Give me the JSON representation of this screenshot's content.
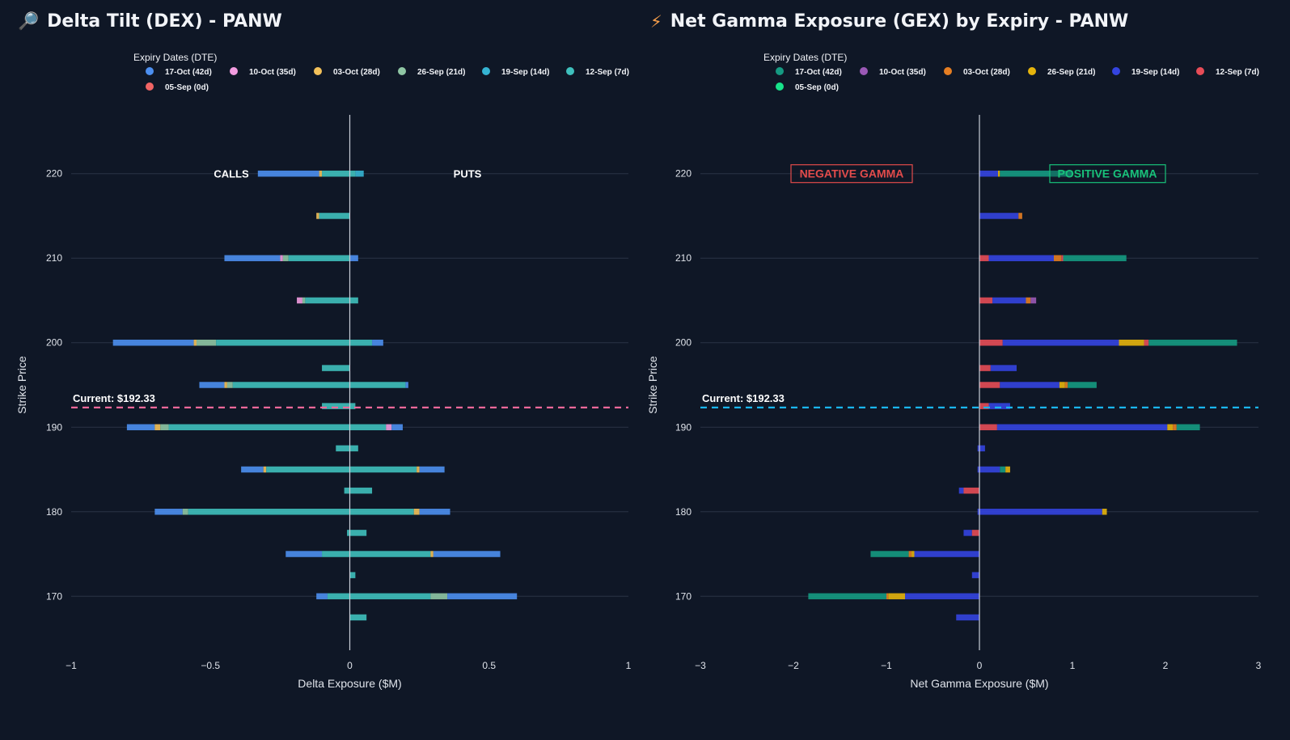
{
  "left": {
    "icon": "magnifier-icon",
    "title": "Delta Tilt (DEX) - PANW",
    "legend_title": "Expiry Dates (DTE)",
    "legend": [
      {
        "label": "17-Oct (42d)",
        "color": "#4c8ff0"
      },
      {
        "label": "10-Oct (35d)",
        "color": "#f29ce0"
      },
      {
        "label": "03-Oct (28d)",
        "color": "#f3c15a"
      },
      {
        "label": "26-Sep (21d)",
        "color": "#8fc6a4"
      },
      {
        "label": "19-Sep (14d)",
        "color": "#35b4d3"
      },
      {
        "label": "12-Sep (7d)",
        "color": "#3fc0bd"
      },
      {
        "label": "05-Sep (0d)",
        "color": "#f06464"
      }
    ],
    "current_label": "Current: $192.33",
    "current_color": "#f0689a",
    "calls_label": "CALLS",
    "puts_label": "PUTS"
  },
  "right": {
    "icon": "lightning-icon",
    "title": "Net Gamma Exposure (GEX) by Expiry - PANW",
    "legend_title": "Expiry Dates (DTE)",
    "legend": [
      {
        "label": "17-Oct (42d)",
        "color": "#159a82"
      },
      {
        "label": "10-Oct (35d)",
        "color": "#9b59b6"
      },
      {
        "label": "03-Oct (28d)",
        "color": "#e67e22"
      },
      {
        "label": "26-Sep (21d)",
        "color": "#e5b40c"
      },
      {
        "label": "19-Sep (14d)",
        "color": "#3444e0"
      },
      {
        "label": "12-Sep (7d)",
        "color": "#e74c57"
      },
      {
        "label": "05-Sep (0d)",
        "color": "#17e38a"
      }
    ],
    "current_label": "Current: $192.33",
    "current_color": "#1ab6f0",
    "neg_label": "NEGATIVE GAMMA",
    "pos_label": "POSITIVE GAMMA"
  },
  "chart_data": [
    {
      "type": "bar",
      "orientation": "horizontal",
      "title": "Delta Tilt (DEX) - PANW",
      "xlabel": "Delta Exposure ($M)",
      "ylabel": "Strike Price",
      "xlim": [
        -1,
        1
      ],
      "ylim": [
        164,
        226
      ],
      "xticks": [
        -1,
        -0.5,
        0,
        0.5,
        1
      ],
      "xtick_labels": [
        "−1",
        "−0.5",
        "0",
        "0.5",
        "1"
      ],
      "yticks": [
        170,
        180,
        190,
        200,
        210,
        220
      ],
      "current_price": 192.33,
      "bars": [
        {
          "strike": 220,
          "segments": [
            {
              "x0": -0.33,
              "x1": -0.11,
              "c": 0
            },
            {
              "x0": -0.11,
              "x1": -0.1,
              "c": 2
            },
            {
              "x0": -0.1,
              "x1": 0.02,
              "c": 5
            },
            {
              "x0": 0.02,
              "x1": 0.05,
              "c": 4
            }
          ]
        },
        {
          "strike": 215,
          "segments": [
            {
              "x0": -0.12,
              "x1": -0.11,
              "c": 2
            },
            {
              "x0": -0.11,
              "x1": 0,
              "c": 5
            }
          ]
        },
        {
          "strike": 210,
          "segments": [
            {
              "x0": -0.45,
              "x1": -0.25,
              "c": 0
            },
            {
              "x0": -0.25,
              "x1": -0.24,
              "c": 1
            },
            {
              "x0": -0.24,
              "x1": -0.22,
              "c": 3
            },
            {
              "x0": -0.22,
              "x1": 0.0,
              "c": 5
            },
            {
              "x0": 0.0,
              "x1": 0.03,
              "c": 0
            }
          ]
        },
        {
          "strike": 205,
          "segments": [
            {
              "x0": -0.19,
              "x1": -0.17,
              "c": 1
            },
            {
              "x0": -0.17,
              "x1": -0.16,
              "c": 3
            },
            {
              "x0": -0.16,
              "x1": 0.03,
              "c": 5
            }
          ]
        },
        {
          "strike": 200,
          "segments": [
            {
              "x0": -0.85,
              "x1": -0.56,
              "c": 0
            },
            {
              "x0": -0.56,
              "x1": -0.55,
              "c": 2
            },
            {
              "x0": -0.55,
              "x1": -0.48,
              "c": 3
            },
            {
              "x0": -0.48,
              "x1": 0.08,
              "c": 5
            },
            {
              "x0": 0.08,
              "x1": 0.12,
              "c": 0
            }
          ]
        },
        {
          "strike": 197,
          "segments": [
            {
              "x0": -0.1,
              "x1": 0,
              "c": 5
            }
          ]
        },
        {
          "strike": 195,
          "segments": [
            {
              "x0": -0.54,
              "x1": -0.45,
              "c": 0
            },
            {
              "x0": -0.45,
              "x1": -0.44,
              "c": 2
            },
            {
              "x0": -0.44,
              "x1": -0.42,
              "c": 3
            },
            {
              "x0": -0.42,
              "x1": 0.2,
              "c": 5
            },
            {
              "x0": 0.2,
              "x1": 0.21,
              "c": 0
            }
          ]
        },
        {
          "strike": 192.5,
          "segments": [
            {
              "x0": -0.1,
              "x1": 0.02,
              "c": 5
            }
          ]
        },
        {
          "strike": 190,
          "segments": [
            {
              "x0": -0.8,
              "x1": -0.7,
              "c": 0
            },
            {
              "x0": -0.7,
              "x1": -0.68,
              "c": 2
            },
            {
              "x0": -0.68,
              "x1": -0.65,
              "c": 3
            },
            {
              "x0": -0.65,
              "x1": 0.13,
              "c": 5
            },
            {
              "x0": 0.13,
              "x1": 0.15,
              "c": 1
            },
            {
              "x0": 0.15,
              "x1": 0.19,
              "c": 0
            }
          ]
        },
        {
          "strike": 187.5,
          "segments": [
            {
              "x0": -0.05,
              "x1": 0.03,
              "c": 5
            }
          ]
        },
        {
          "strike": 185,
          "segments": [
            {
              "x0": -0.39,
              "x1": -0.31,
              "c": 0
            },
            {
              "x0": -0.31,
              "x1": -0.3,
              "c": 2
            },
            {
              "x0": -0.3,
              "x1": 0.24,
              "c": 5
            },
            {
              "x0": 0.24,
              "x1": 0.25,
              "c": 2
            },
            {
              "x0": 0.25,
              "x1": 0.34,
              "c": 0
            }
          ]
        },
        {
          "strike": 182.5,
          "segments": [
            {
              "x0": -0.02,
              "x1": 0.08,
              "c": 5
            }
          ]
        },
        {
          "strike": 180,
          "segments": [
            {
              "x0": -0.7,
              "x1": -0.6,
              "c": 0
            },
            {
              "x0": -0.6,
              "x1": -0.58,
              "c": 3
            },
            {
              "x0": -0.58,
              "x1": 0.23,
              "c": 5
            },
            {
              "x0": 0.23,
              "x1": 0.25,
              "c": 2
            },
            {
              "x0": 0.25,
              "x1": 0.36,
              "c": 0
            }
          ]
        },
        {
          "strike": 177.5,
          "segments": [
            {
              "x0": -0.01,
              "x1": 0.06,
              "c": 5
            }
          ]
        },
        {
          "strike": 175,
          "segments": [
            {
              "x0": -0.23,
              "x1": -0.1,
              "c": 0
            },
            {
              "x0": -0.1,
              "x1": 0.29,
              "c": 5
            },
            {
              "x0": 0.29,
              "x1": 0.3,
              "c": 2
            },
            {
              "x0": 0.3,
              "x1": 0.54,
              "c": 0
            }
          ]
        },
        {
          "strike": 172.5,
          "segments": [
            {
              "x0": 0.0,
              "x1": 0.02,
              "c": 5
            }
          ]
        },
        {
          "strike": 170,
          "segments": [
            {
              "x0": -0.12,
              "x1": -0.08,
              "c": 0
            },
            {
              "x0": -0.08,
              "x1": 0.29,
              "c": 5
            },
            {
              "x0": 0.29,
              "x1": 0.35,
              "c": 3
            },
            {
              "x0": 0.35,
              "x1": 0.6,
              "c": 0
            }
          ]
        },
        {
          "strike": 167.5,
          "segments": [
            {
              "x0": 0.0,
              "x1": 0.06,
              "c": 5
            }
          ]
        }
      ]
    },
    {
      "type": "bar",
      "orientation": "horizontal",
      "title": "Net Gamma Exposure (GEX) by Expiry - PANW",
      "xlabel": "Net Gamma Exposure ($M)",
      "ylabel": "Strike Price",
      "xlim": [
        -3,
        3
      ],
      "ylim": [
        164,
        226
      ],
      "xticks": [
        -3,
        -2,
        -1,
        0,
        1,
        2,
        3
      ],
      "xtick_labels": [
        "−3",
        "−2",
        "−1",
        "0",
        "1",
        "2",
        "3"
      ],
      "yticks": [
        170,
        180,
        190,
        200,
        210,
        220
      ],
      "current_price": 192.33,
      "bars": [
        {
          "strike": 220,
          "segments": [
            {
              "x0": 0,
              "x1": 0.2,
              "c": 4
            },
            {
              "x0": 0.2,
              "x1": 0.22,
              "c": 3
            },
            {
              "x0": 0.22,
              "x1": 1.0,
              "c": 0
            }
          ]
        },
        {
          "strike": 215,
          "segments": [
            {
              "x0": 0,
              "x1": 0.42,
              "c": 4
            },
            {
              "x0": 0.42,
              "x1": 0.46,
              "c": 2
            }
          ]
        },
        {
          "strike": 210,
          "segments": [
            {
              "x0": 0,
              "x1": 0.1,
              "c": 5
            },
            {
              "x0": 0.1,
              "x1": 0.8,
              "c": 4
            },
            {
              "x0": 0.8,
              "x1": 0.88,
              "c": 2
            },
            {
              "x0": 0.88,
              "x1": 0.9,
              "c": 5
            },
            {
              "x0": 0.9,
              "x1": 1.58,
              "c": 0
            }
          ]
        },
        {
          "strike": 205,
          "segments": [
            {
              "x0": 0,
              "x1": 0.14,
              "c": 5
            },
            {
              "x0": 0.14,
              "x1": 0.5,
              "c": 4
            },
            {
              "x0": 0.5,
              "x1": 0.55,
              "c": 2
            },
            {
              "x0": 0.55,
              "x1": 0.61,
              "c": 1
            }
          ]
        },
        {
          "strike": 200,
          "segments": [
            {
              "x0": 0,
              "x1": 0.25,
              "c": 5
            },
            {
              "x0": 0.25,
              "x1": 1.5,
              "c": 4
            },
            {
              "x0": 1.5,
              "x1": 1.77,
              "c": 3
            },
            {
              "x0": 1.77,
              "x1": 1.82,
              "c": 5
            },
            {
              "x0": 1.82,
              "x1": 2.77,
              "c": 0
            }
          ]
        },
        {
          "strike": 197,
          "segments": [
            {
              "x0": 0,
              "x1": 0.12,
              "c": 5
            },
            {
              "x0": 0.12,
              "x1": 0.4,
              "c": 4
            }
          ]
        },
        {
          "strike": 195,
          "segments": [
            {
              "x0": 0,
              "x1": 0.22,
              "c": 5
            },
            {
              "x0": 0.22,
              "x1": 0.86,
              "c": 4
            },
            {
              "x0": 0.86,
              "x1": 0.92,
              "c": 3
            },
            {
              "x0": 0.92,
              "x1": 0.95,
              "c": 2
            },
            {
              "x0": 0.95,
              "x1": 1.26,
              "c": 0
            }
          ]
        },
        {
          "strike": 192.5,
          "segments": [
            {
              "x0": 0,
              "x1": 0.1,
              "c": 5
            },
            {
              "x0": 0.1,
              "x1": 0.33,
              "c": 4
            }
          ]
        },
        {
          "strike": 190,
          "segments": [
            {
              "x0": 0,
              "x1": 0.19,
              "c": 5
            },
            {
              "x0": 0.19,
              "x1": 2.02,
              "c": 4
            },
            {
              "x0": 2.02,
              "x1": 2.08,
              "c": 3
            },
            {
              "x0": 2.08,
              "x1": 2.12,
              "c": 2
            },
            {
              "x0": 2.12,
              "x1": 2.37,
              "c": 0
            }
          ]
        },
        {
          "strike": 187.5,
          "segments": [
            {
              "x0": -0.02,
              "x1": 0.06,
              "c": 4
            }
          ]
        },
        {
          "strike": 185,
          "segments": [
            {
              "x0": -0.02,
              "x1": 0.22,
              "c": 4
            },
            {
              "x0": 0.22,
              "x1": 0.28,
              "c": 0
            },
            {
              "x0": 0.28,
              "x1": 0.33,
              "c": 3
            }
          ]
        },
        {
          "strike": 182.5,
          "segments": [
            {
              "x0": -0.22,
              "x1": -0.17,
              "c": 4
            },
            {
              "x0": -0.17,
              "x1": 0,
              "c": 5
            }
          ]
        },
        {
          "strike": 180,
          "segments": [
            {
              "x0": -0.02,
              "x1": 1.32,
              "c": 4
            },
            {
              "x0": 1.32,
              "x1": 1.37,
              "c": 3
            }
          ]
        },
        {
          "strike": 177.5,
          "segments": [
            {
              "x0": -0.17,
              "x1": -0.08,
              "c": 4
            },
            {
              "x0": -0.08,
              "x1": 0,
              "c": 5
            }
          ]
        },
        {
          "strike": 175,
          "segments": [
            {
              "x0": -1.17,
              "x1": -0.76,
              "c": 0
            },
            {
              "x0": -0.76,
              "x1": -0.73,
              "c": 2
            },
            {
              "x0": -0.73,
              "x1": -0.7,
              "c": 3
            },
            {
              "x0": -0.7,
              "x1": 0,
              "c": 4
            }
          ]
        },
        {
          "strike": 172.5,
          "segments": [
            {
              "x0": -0.08,
              "x1": 0,
              "c": 4
            }
          ]
        },
        {
          "strike": 170,
          "segments": [
            {
              "x0": -1.84,
              "x1": -1.0,
              "c": 0
            },
            {
              "x0": -1.0,
              "x1": -0.98,
              "c": 2
            },
            {
              "x0": -0.98,
              "x1": -0.8,
              "c": 3
            },
            {
              "x0": -0.8,
              "x1": 0,
              "c": 4
            }
          ]
        },
        {
          "strike": 167.5,
          "segments": [
            {
              "x0": -0.25,
              "x1": 0,
              "c": 4
            }
          ]
        }
      ]
    }
  ]
}
